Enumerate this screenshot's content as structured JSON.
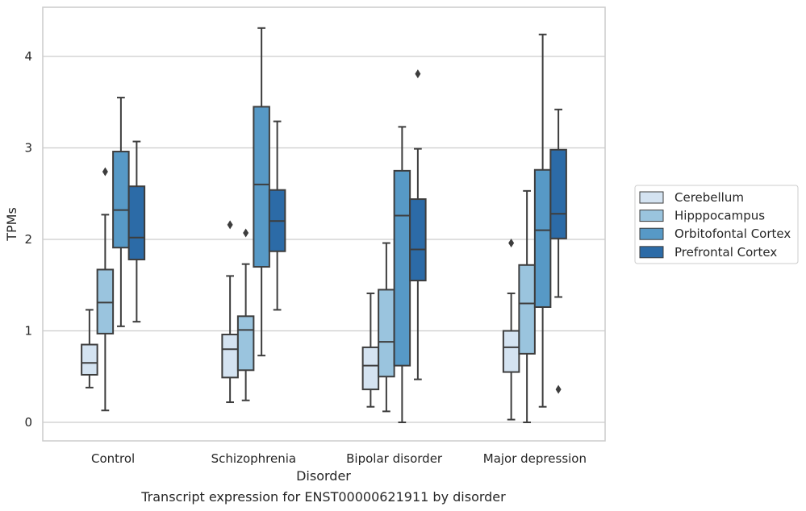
{
  "chart_data": {
    "type": "boxplot",
    "title": "",
    "caption": "Transcript expression for ENST00000621911 by disorder",
    "xlabel": "Disorder",
    "ylabel": "TPMs",
    "ylim": [
      -0.2,
      4.55
    ],
    "yticks": [
      0,
      1,
      2,
      3,
      4
    ],
    "grid": "horizontal",
    "legend_position": "right",
    "categories": [
      "Control",
      "Schizophrenia",
      "Bipolar disorder",
      "Major depression"
    ],
    "series": [
      {
        "name": "Cerebellum",
        "color": "#d4e3f1",
        "boxes": [
          {
            "whislo": 0.38,
            "q1": 0.52,
            "med": 0.65,
            "q3": 0.85,
            "whishi": 1.23,
            "fliers": []
          },
          {
            "whislo": 0.22,
            "q1": 0.49,
            "med": 0.8,
            "q3": 0.96,
            "whishi": 1.6,
            "fliers": [
              2.16
            ]
          },
          {
            "whislo": 0.17,
            "q1": 0.36,
            "med": 0.62,
            "q3": 0.82,
            "whishi": 1.41,
            "fliers": []
          },
          {
            "whislo": 0.03,
            "q1": 0.55,
            "med": 0.82,
            "q3": 1.0,
            "whishi": 1.41,
            "fliers": [
              1.96
            ]
          }
        ]
      },
      {
        "name": "Hipppocampus",
        "color": "#9ac4de",
        "boxes": [
          {
            "whislo": 0.13,
            "q1": 0.97,
            "med": 1.31,
            "q3": 1.67,
            "whishi": 2.27,
            "fliers": [
              2.74
            ]
          },
          {
            "whislo": 0.24,
            "q1": 0.57,
            "med": 1.01,
            "q3": 1.16,
            "whishi": 1.73,
            "fliers": [
              2.07
            ]
          },
          {
            "whislo": 0.12,
            "q1": 0.5,
            "med": 0.88,
            "q3": 1.45,
            "whishi": 1.96,
            "fliers": []
          },
          {
            "whislo": 0.0,
            "q1": 0.75,
            "med": 1.3,
            "q3": 1.72,
            "whishi": 2.53,
            "fliers": []
          }
        ]
      },
      {
        "name": "Orbitofontal Cortex",
        "color": "#5799c6",
        "boxes": [
          {
            "whislo": 1.05,
            "q1": 1.91,
            "med": 2.32,
            "q3": 2.96,
            "whishi": 3.55,
            "fliers": []
          },
          {
            "whislo": 0.73,
            "q1": 1.7,
            "med": 2.6,
            "q3": 3.45,
            "whishi": 4.31,
            "fliers": []
          },
          {
            "whislo": 0.0,
            "q1": 0.62,
            "med": 2.26,
            "q3": 2.75,
            "whishi": 3.23,
            "fliers": []
          },
          {
            "whislo": 0.17,
            "q1": 1.26,
            "med": 2.1,
            "q3": 2.76,
            "whishi": 4.24,
            "fliers": []
          }
        ]
      },
      {
        "name": "Prefrontal Cortex",
        "color": "#2c6ba7",
        "boxes": [
          {
            "whislo": 1.1,
            "q1": 1.78,
            "med": 2.02,
            "q3": 2.58,
            "whishi": 3.07,
            "fliers": []
          },
          {
            "whislo": 1.23,
            "q1": 1.87,
            "med": 2.2,
            "q3": 2.54,
            "whishi": 3.29,
            "fliers": []
          },
          {
            "whislo": 0.47,
            "q1": 1.55,
            "med": 1.89,
            "q3": 2.44,
            "whishi": 2.99,
            "fliers": [
              3.81
            ]
          },
          {
            "whislo": 1.37,
            "q1": 2.01,
            "med": 2.28,
            "q3": 2.98,
            "whishi": 3.42,
            "fliers": [
              0.36
            ]
          }
        ]
      }
    ]
  }
}
